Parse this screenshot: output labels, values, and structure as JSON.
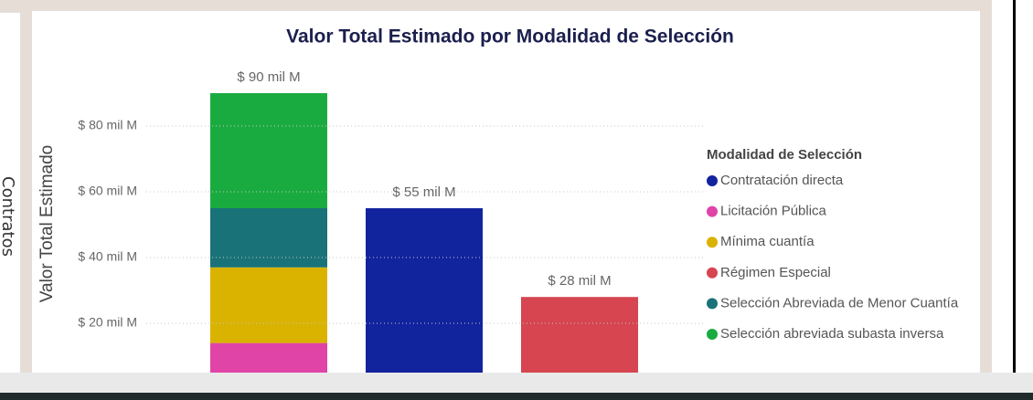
{
  "side_label": "Contratos",
  "chart_data": {
    "type": "stacked-bar",
    "title": "Valor Total Estimado por Modalidad de Selección",
    "y_label": "Valor Total Estimado",
    "legend_title": "Modalidad de Selección",
    "categories": [
      null,
      null,
      null
    ],
    "series": [
      {
        "name": "Contratación directa",
        "color": "#12239e",
        "values": [
          null,
          55,
          null
        ]
      },
      {
        "name": "Licitación Pública",
        "color": "#e044a7",
        "values": [
          14,
          null,
          null
        ]
      },
      {
        "name": "Mínima cuantía",
        "color": "#d9b300",
        "values": [
          23,
          null,
          null
        ]
      },
      {
        "name": "Régimen Especial",
        "color": "#d64550",
        "values": [
          null,
          null,
          28
        ]
      },
      {
        "name": "Selección Abreviada de Menor Cuantía",
        "color": "#197278",
        "values": [
          18,
          null,
          null
        ]
      },
      {
        "name": "Selección abreviada subasta inversa",
        "color": "#1aab40",
        "values": [
          35,
          null,
          null
        ]
      }
    ],
    "totals": [
      90,
      55,
      28
    ],
    "total_labels": [
      "$ 90 mil M",
      "$ 55 mil M",
      "$ 28 mil M"
    ],
    "ylim": [
      0,
      95
    ],
    "yticks": [
      {
        "value": 20,
        "label": "$ 20 mil M"
      },
      {
        "value": 40,
        "label": "$ 40 mil M"
      },
      {
        "value": 60,
        "label": "$ 60 mil M"
      },
      {
        "value": 80,
        "label": "$ 80 mil M"
      }
    ],
    "grid": true,
    "legend": "right"
  }
}
